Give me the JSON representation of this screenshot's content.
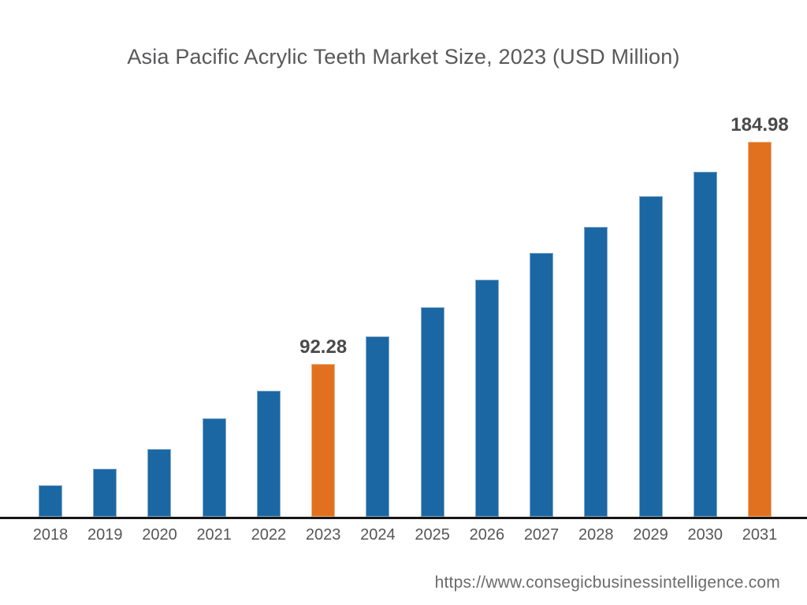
{
  "title": "Asia Pacific Acrylic Teeth Market Size, 2023 (USD Million)",
  "footer_url": "https://www.consegicbusinessintelligence.com",
  "chart_data": {
    "type": "bar",
    "title": "Asia Pacific Acrylic Teeth Market Size, 2023 (USD Million)",
    "xlabel": "",
    "ylabel": "",
    "categories": [
      "2018",
      "2019",
      "2020",
      "2021",
      "2022",
      "2023",
      "2024",
      "2025",
      "2026",
      "2027",
      "2028",
      "2029",
      "2030",
      "2031"
    ],
    "values": [
      41.7,
      48.6,
      56.8,
      69.6,
      81.1,
      92.28,
      103.8,
      115.9,
      127.5,
      138.6,
      149.5,
      162.3,
      172.5,
      184.98
    ],
    "value_labels": {
      "2023": "92.28",
      "2031": "184.98"
    },
    "highlight_categories": [
      "2023",
      "2031"
    ],
    "ylim": [
      28.5,
      188
    ],
    "grid": false,
    "legend": false,
    "colors": {
      "bar_default": "#1b67a3",
      "bar_highlight": "#e2711f",
      "axis_line": "#161616",
      "title_text": "#58585a",
      "tick_text": "#565658",
      "value_label_text": "#4a4a4a",
      "footer_text": "#6b6b6b",
      "background": "#ffffff"
    }
  }
}
